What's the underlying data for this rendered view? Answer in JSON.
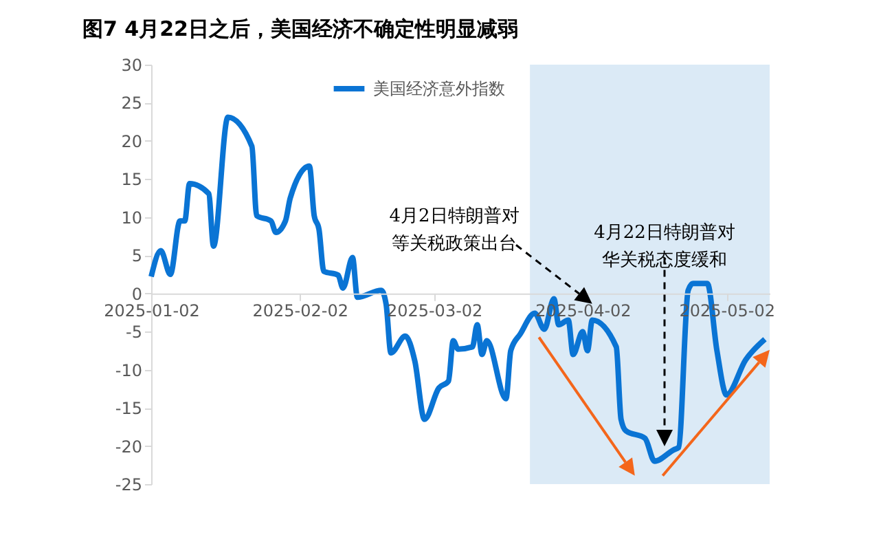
{
  "chart_data": {
    "type": "line",
    "title": "图7 4月22日之后，美国经济不确定性明显减弱",
    "x": [
      "2025-01-02",
      "2025-01-04",
      "2025-01-06",
      "2025-01-08",
      "2025-01-09",
      "2025-01-10",
      "2025-01-14",
      "2025-01-15",
      "2025-01-18",
      "2025-01-23",
      "2025-01-24",
      "2025-01-27",
      "2025-01-28",
      "2025-01-30",
      "2025-01-31",
      "2025-02-04",
      "2025-02-05",
      "2025-02-06",
      "2025-02-07",
      "2025-02-10",
      "2025-02-11",
      "2025-02-13",
      "2025-02-14",
      "2025-02-19",
      "2025-02-20",
      "2025-02-21",
      "2025-02-24",
      "2025-02-26",
      "2025-02-28",
      "2025-03-03",
      "2025-03-05",
      "2025-03-06",
      "2025-03-07",
      "2025-03-10",
      "2025-03-11",
      "2025-03-12",
      "2025-03-13",
      "2025-03-17",
      "2025-03-18",
      "2025-03-20",
      "2025-03-23",
      "2025-03-25",
      "2025-03-27",
      "2025-03-28",
      "2025-03-30",
      "2025-03-31",
      "2025-04-02",
      "2025-04-03",
      "2025-04-04",
      "2025-04-09",
      "2025-04-10",
      "2025-04-11",
      "2025-04-15",
      "2025-04-17",
      "2025-04-21",
      "2025-04-22",
      "2025-04-24",
      "2025-04-25",
      "2025-04-28",
      "2025-04-30",
      "2025-05-02",
      "2025-05-06",
      "2025-05-10"
    ],
    "series": [
      {
        "name": "美国经济意外指数",
        "color": "#0a74d4",
        "values": [
          2.2,
          5.6,
          2.5,
          9.5,
          9.5,
          14.4,
          13.1,
          6.2,
          23.1,
          19.3,
          10.2,
          9.5,
          8,
          9.5,
          12.5,
          16.7,
          10.2,
          8.4,
          2.9,
          2.4,
          0.7,
          4.7,
          -0.5,
          0.4,
          -1.4,
          -7.8,
          -5.6,
          -8.9,
          -16.5,
          -12.4,
          -11.5,
          -6.2,
          -7.3,
          -7,
          -4.1,
          -8,
          -6.2,
          -13.8,
          -7.5,
          -5.3,
          -2.6,
          -4.7,
          -0.7,
          -4.1,
          -3.5,
          -8,
          -5,
          -7.5,
          -3.5,
          -7,
          -16.5,
          -18,
          -19,
          -22,
          -20.5,
          -20.2,
          0.4,
          1.3,
          1.3,
          -7.5,
          -13.3,
          -8.7,
          -6
        ]
      }
    ],
    "xlim": [
      "2025-01-02",
      "2025-05-11"
    ],
    "xticks": [
      "2025-01-02",
      "2025-02-02",
      "2025-03-02",
      "2025-04-02",
      "2025-05-02"
    ],
    "ylim": [
      -25,
      30
    ],
    "yticks": [
      -25,
      -20,
      -15,
      -10,
      -5,
      0,
      5,
      10,
      15,
      20,
      25,
      30
    ],
    "bands": [
      {
        "axis": "x",
        "from": "2025-03-22",
        "to": "2025-05-11",
        "color": "#dbeaf6"
      }
    ],
    "annotations": [
      "4月2日特朗普对等关税政策出台",
      "4月22日特朗普对华关税态度缓和"
    ],
    "legend": "top",
    "grid": false,
    "marker": "none",
    "line_style": "solid"
  }
}
